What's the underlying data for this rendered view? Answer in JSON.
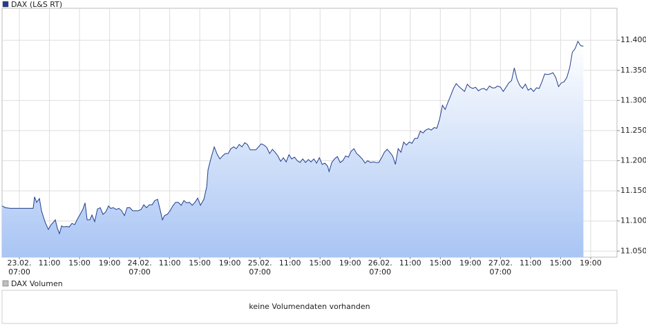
{
  "chart_data": {
    "type": "area",
    "legend": "DAX (L&S RT)",
    "series": [
      {
        "name": "DAX (L&S RT)",
        "color": "#1f3d8c",
        "x": [
          -2.3,
          -1.84,
          -1.2,
          -0.55,
          0.18,
          1.1,
          1.84,
          2.02,
          2.3,
          2.67,
          2.94,
          3.4,
          3.86,
          4.23,
          4.6,
          4.78,
          5.06,
          5.33,
          5.61,
          5.89,
          6.25,
          6.62,
          6.99,
          7.36,
          7.72,
          8.09,
          8.46,
          8.74,
          9.01,
          9.38,
          9.66,
          10.02,
          10.39,
          10.76,
          11.13,
          11.49,
          11.86,
          12.14,
          12.51,
          12.87,
          13.24,
          13.61,
          13.98,
          14.34,
          14.71,
          15.08,
          15.45,
          15.82,
          16.18,
          16.55,
          16.92,
          17.29,
          17.66,
          18.02,
          18.39,
          18.76,
          19.03,
          19.31,
          19.68,
          20.05,
          20.41,
          20.78,
          21.15,
          21.52,
          21.89,
          22.25,
          22.62,
          22.99,
          23.36,
          23.72,
          24.09,
          24.55,
          24.92,
          25.1,
          25.47,
          25.93,
          26.3,
          26.67,
          27.03,
          27.4,
          27.77,
          28.14,
          28.51,
          28.87,
          29.24,
          29.61,
          29.98,
          30.34,
          30.71,
          31.08,
          31.45,
          31.82,
          32.18,
          32.55,
          32.92,
          33.29,
          33.66,
          34.02,
          34.39,
          34.76,
          35.13,
          35.49,
          35.86,
          36.23,
          36.6,
          36.97,
          37.33,
          37.7,
          38.07,
          38.44,
          38.8,
          39.17,
          39.54,
          39.91,
          40.28,
          40.64,
          41.01,
          41.2,
          41.56,
          41.93,
          42.3,
          42.67,
          43.03,
          43.4,
          43.77,
          44.14,
          44.51,
          44.87,
          45.24,
          45.61,
          45.98,
          46.34,
          46.71,
          47.08,
          47.45,
          47.82,
          48.18,
          48.55,
          48.92,
          49.29,
          49.66,
          50.02,
          50.39,
          50.76,
          51.13,
          51.49,
          51.86,
          52.23,
          52.6,
          52.97,
          53.33,
          53.7,
          54.07,
          54.44,
          54.8,
          55.17,
          55.54,
          55.91,
          56.28,
          56.64,
          57.01,
          57.38,
          57.75,
          58.11,
          58.48,
          58.85,
          59.22,
          59.59,
          59.95,
          60.32,
          60.69,
          61.06,
          61.43,
          61.79,
          62.16,
          62.53,
          62.9,
          63.26,
          63.63,
          64.0,
          64.37,
          64.74,
          65.1,
          65.47,
          65.84,
          66.21,
          66.57,
          66.94,
          67.31,
          67.68,
          68.05,
          68.41,
          68.78,
          69.15,
          69.52,
          69.89,
          70.25,
          70.62,
          70.99,
          71.36,
          71.72,
          72.09,
          72.46,
          72.83,
          73.2,
          73.56,
          73.93,
          74.3,
          74.67,
          75.03
        ],
        "values": [
          11125,
          11122,
          11121,
          11121,
          11121,
          11121,
          11121,
          11140,
          11131,
          11137,
          11117,
          11099,
          11086,
          11094,
          11099,
          11102,
          11088,
          11079,
          11092,
          11090,
          11091,
          11090,
          11096,
          11094,
          11103,
          11111,
          11120,
          11130,
          11102,
          11102,
          11110,
          11099,
          11120,
          11122,
          11111,
          11115,
          11125,
          11121,
          11122,
          11119,
          11121,
          11117,
          11109,
          11122,
          11122,
          11117,
          11117,
          11117,
          11119,
          11127,
          11122,
          11127,
          11127,
          11134,
          11136,
          11117,
          11102,
          11109,
          11111,
          11117,
          11125,
          11131,
          11131,
          11126,
          11134,
          11130,
          11131,
          11126,
          11131,
          11138,
          11126,
          11136,
          11157,
          11185,
          11203,
          11223,
          11211,
          11203,
          11208,
          11212,
          11212,
          11220,
          11223,
          11220,
          11227,
          11223,
          11230,
          11227,
          11218,
          11218,
          11218,
          11223,
          11228,
          11226,
          11222,
          11212,
          11219,
          11214,
          11208,
          11199,
          11205,
          11198,
          11210,
          11203,
          11206,
          11200,
          11197,
          11203,
          11197,
          11202,
          11198,
          11203,
          11196,
          11205,
          11194,
          11196,
          11191,
          11182,
          11197,
          11203,
          11207,
          11197,
          11200,
          11208,
          11206,
          11216,
          11220,
          11212,
          11208,
          11203,
          11196,
          11200,
          11197,
          11198,
          11197,
          11197,
          11205,
          11214,
          11219,
          11214,
          11208,
          11194,
          11220,
          11214,
          11231,
          11226,
          11231,
          11229,
          11237,
          11237,
          11249,
          11246,
          11251,
          11253,
          11251,
          11255,
          11254,
          11269,
          11292,
          11285,
          11297,
          11308,
          11320,
          11328,
          11323,
          11319,
          11315,
          11327,
          11322,
          11320,
          11322,
          11316,
          11319,
          11320,
          11317,
          11324,
          11321,
          11321,
          11324,
          11322,
          11315,
          11322,
          11329,
          11333,
          11354,
          11335,
          11325,
          11320,
          11327,
          11317,
          11320,
          11315,
          11321,
          11320,
          11331,
          11344,
          11343,
          11344,
          11346,
          11338,
          11323,
          11329,
          11331,
          11338,
          11354,
          11380,
          11386,
          11398,
          11391,
          11390
        ]
      }
    ],
    "xlim": [
      -2.3,
      79.5
    ],
    "xticks": [
      {
        "value": 0,
        "label": "23.02. 07:00"
      },
      {
        "value": 4,
        "label": "11:00"
      },
      {
        "value": 8,
        "label": "15:00"
      },
      {
        "value": 12,
        "label": "19:00"
      },
      {
        "value": 16,
        "label": "24.02. 07:00"
      },
      {
        "value": 20,
        "label": "11:00"
      },
      {
        "value": 24,
        "label": "15:00"
      },
      {
        "value": 28,
        "label": "19:00"
      },
      {
        "value": 32,
        "label": "25.02. 07:00"
      },
      {
        "value": 36,
        "label": "11:00"
      },
      {
        "value": 40,
        "label": "15:00"
      },
      {
        "value": 44,
        "label": "19:00"
      },
      {
        "value": 48,
        "label": "26.02. 07:00"
      },
      {
        "value": 52,
        "label": "11:00"
      },
      {
        "value": 56,
        "label": "15:00"
      },
      {
        "value": 60,
        "label": "19:00"
      },
      {
        "value": 64,
        "label": "27.02. 07:00"
      },
      {
        "value": 68,
        "label": "11:00"
      },
      {
        "value": 72,
        "label": "15:00"
      },
      {
        "value": 76,
        "label": "19:00"
      }
    ],
    "ylim": [
      11040,
      11453
    ],
    "yticks": [
      {
        "value": 11050,
        "label": "11.050"
      },
      {
        "value": 11100,
        "label": "11.100"
      },
      {
        "value": 11150,
        "label": "11.150"
      },
      {
        "value": 11200,
        "label": "11.200"
      },
      {
        "value": 11250,
        "label": "11.250"
      },
      {
        "value": 11300,
        "label": "11.300"
      },
      {
        "value": 11350,
        "label": "11.350"
      },
      {
        "value": 11400,
        "label": "11.400"
      }
    ],
    "grid": true
  },
  "volume_panel": {
    "legend": "DAX Volumen",
    "message": "keine Volumendaten vorhanden"
  }
}
